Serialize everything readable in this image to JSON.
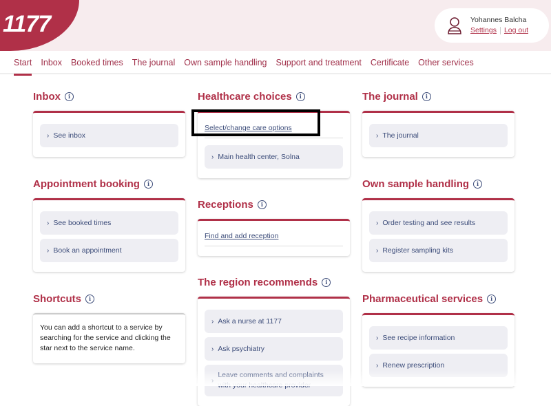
{
  "header": {
    "logo": "1177",
    "user_name": "Yohannes Balcha",
    "settings": "Settings",
    "logout": "Log out"
  },
  "nav": [
    "Start",
    "Inbox",
    "Booked times",
    "The journal",
    "Own sample handling",
    "Support and treatment",
    "Certificate",
    "Other services"
  ],
  "sections": {
    "inbox": {
      "title": "Inbox",
      "buttons": [
        "See inbox"
      ]
    },
    "appointment": {
      "title": "Appointment booking",
      "buttons": [
        "See booked times",
        "Book an appointment"
      ]
    },
    "shortcuts": {
      "title": "Shortcuts",
      "text": "You can add a shortcut to a service by searching for the service and clicking the star next to the service name."
    },
    "healthcare": {
      "title": "Healthcare choices",
      "link": "Select/change care options",
      "buttons": [
        "Main health center, Solna"
      ]
    },
    "receptions": {
      "title": "Receptions",
      "link": "Find and add reception"
    },
    "region": {
      "title": "The region recommends",
      "buttons": [
        "Ask a nurse at 1177",
        "Ask psychiatry",
        "Leave comments and complaints with your healthcare provider"
      ]
    },
    "journal": {
      "title": "The journal",
      "buttons": [
        "The journal"
      ]
    },
    "sample": {
      "title": "Own sample handling",
      "buttons": [
        "Order testing and see results",
        "Register sampling kits"
      ]
    },
    "pharma": {
      "title": "Pharmaceutical services",
      "buttons": [
        "See recipe information",
        "Renew prescription"
      ]
    }
  },
  "info_icon": "i"
}
